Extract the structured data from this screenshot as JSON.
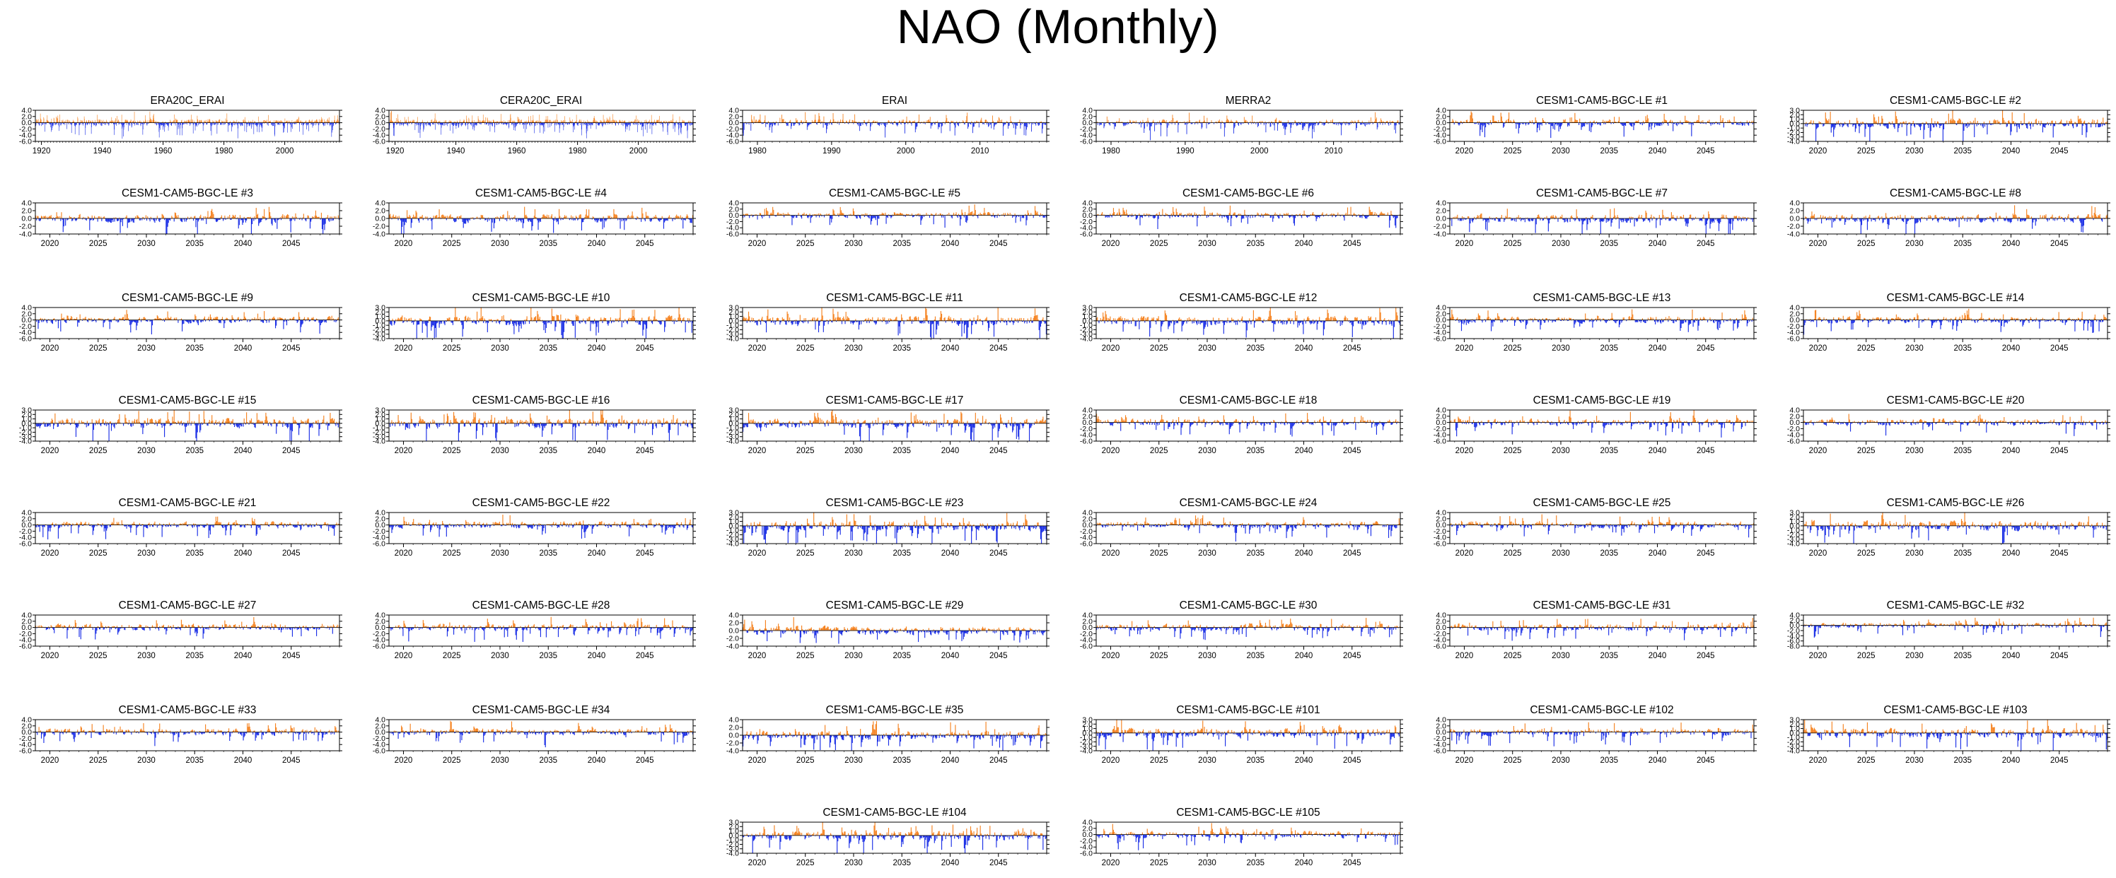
{
  "page_title": "NAO (Monthly)",
  "colors": {
    "positive": "#f5821f",
    "negative": "#1a2ee6",
    "axis": "#000000",
    "background": "#ffffff"
  },
  "chart_data": [
    {
      "type": "bar",
      "title": "ERA20C_ERAI",
      "x_ticks": [
        "1920",
        "1940",
        "1960",
        "1980",
        "2000"
      ],
      "y_ticks": [
        "4.0",
        "2.0",
        "0.0",
        "-2.0",
        "-4.0",
        "-6.0"
      ],
      "ylim": [
        -6.0,
        4.0
      ],
      "xlim": [
        1918,
        2018
      ],
      "seed": 11
    },
    {
      "type": "bar",
      "title": "CERA20C_ERAI",
      "x_ticks": [
        "1920",
        "1940",
        "1960",
        "1980",
        "2000"
      ],
      "y_ticks": [
        "4.0",
        "2.0",
        "0.0",
        "-2.0",
        "-4.0",
        "-6.0"
      ],
      "ylim": [
        -6.0,
        4.0
      ],
      "xlim": [
        1918,
        2018
      ],
      "seed": 12
    },
    {
      "type": "bar",
      "title": "ERAI",
      "x_ticks": [
        "1980",
        "1990",
        "2000",
        "2010"
      ],
      "y_ticks": [
        "4.0",
        "2.0",
        "0.0",
        "-2.0",
        "-4.0",
        "-6.0"
      ],
      "ylim": [
        -6.0,
        4.0
      ],
      "xlim": [
        1978,
        2019
      ],
      "seed": 13
    },
    {
      "type": "bar",
      "title": "MERRA2",
      "x_ticks": [
        "1980",
        "1990",
        "2000",
        "2010"
      ],
      "y_ticks": [
        "4.0",
        "2.0",
        "0.0",
        "-2.0",
        "-4.0",
        "-6.0"
      ],
      "ylim": [
        -6.0,
        4.0
      ],
      "xlim": [
        1978,
        2019
      ],
      "seed": 14
    },
    {
      "type": "bar",
      "title": "CESM1-CAM5-BGC-LE #1",
      "x_ticks": [
        "2020",
        "2025",
        "2030",
        "2035",
        "2040",
        "2045"
      ],
      "y_ticks": [
        "4.0",
        "2.0",
        "0.0",
        "-2.0",
        "-4.0",
        "-6.0"
      ],
      "ylim": [
        -6.0,
        4.0
      ],
      "xlim": [
        2018.5,
        2050
      ],
      "seed": 15
    },
    {
      "type": "bar",
      "title": "CESM1-CAM5-BGC-LE #2",
      "x_ticks": [
        "2020",
        "2025",
        "2030",
        "2035",
        "2040",
        "2045"
      ],
      "y_ticks": [
        "3.0",
        "2.0",
        "1.0",
        "0.0",
        "-1.0",
        "-2.0",
        "-3.0",
        "-4.0"
      ],
      "ylim": [
        -4.0,
        3.0
      ],
      "xlim": [
        2018.5,
        2050
      ],
      "seed": 16
    },
    {
      "type": "bar",
      "title": "CESM1-CAM5-BGC-LE #3",
      "x_ticks": [
        "2020",
        "2025",
        "2030",
        "2035",
        "2040",
        "2045"
      ],
      "y_ticks": [
        "4.0",
        "2.0",
        "0.0",
        "-2.0",
        "-4.0"
      ],
      "ylim": [
        -4.0,
        4.0
      ],
      "xlim": [
        2018.5,
        2050
      ],
      "seed": 21
    },
    {
      "type": "bar",
      "title": "CESM1-CAM5-BGC-LE #4",
      "x_ticks": [
        "2020",
        "2025",
        "2030",
        "2035",
        "2040",
        "2045"
      ],
      "y_ticks": [
        "4.0",
        "2.0",
        "0.0",
        "-2.0",
        "-4.0"
      ],
      "ylim": [
        -4.0,
        4.0
      ],
      "xlim": [
        2018.5,
        2050
      ],
      "seed": 22
    },
    {
      "type": "bar",
      "title": "CESM1-CAM5-BGC-LE #5",
      "x_ticks": [
        "2020",
        "2025",
        "2030",
        "2035",
        "2040",
        "2045"
      ],
      "y_ticks": [
        "4.0",
        "2.0",
        "0.0",
        "-2.0",
        "-4.0",
        "-6.0"
      ],
      "ylim": [
        -6.0,
        4.0
      ],
      "xlim": [
        2018.5,
        2050
      ],
      "seed": 23
    },
    {
      "type": "bar",
      "title": "CESM1-CAM5-BGC-LE #6",
      "x_ticks": [
        "2020",
        "2025",
        "2030",
        "2035",
        "2040",
        "2045"
      ],
      "y_ticks": [
        "4.0",
        "2.0",
        "0.0",
        "-2.0",
        "-4.0",
        "-6.0"
      ],
      "ylim": [
        -6.0,
        4.0
      ],
      "xlim": [
        2018.5,
        2050
      ],
      "seed": 24
    },
    {
      "type": "bar",
      "title": "CESM1-CAM5-BGC-LE #7",
      "x_ticks": [
        "2020",
        "2025",
        "2030",
        "2035",
        "2040",
        "2045"
      ],
      "y_ticks": [
        "4.0",
        "2.0",
        "0.0",
        "-2.0",
        "-4.0"
      ],
      "ylim": [
        -4.0,
        4.0
      ],
      "xlim": [
        2018.5,
        2050
      ],
      "seed": 25
    },
    {
      "type": "bar",
      "title": "CESM1-CAM5-BGC-LE #8",
      "x_ticks": [
        "2020",
        "2025",
        "2030",
        "2035",
        "2040",
        "2045"
      ],
      "y_ticks": [
        "4.0",
        "2.0",
        "0.0",
        "-2.0",
        "-4.0"
      ],
      "ylim": [
        -4.0,
        4.0
      ],
      "xlim": [
        2018.5,
        2050
      ],
      "seed": 26
    },
    {
      "type": "bar",
      "title": "CESM1-CAM5-BGC-LE #9",
      "x_ticks": [
        "2020",
        "2025",
        "2030",
        "2035",
        "2040",
        "2045"
      ],
      "y_ticks": [
        "4.0",
        "2.0",
        "0.0",
        "-2.0",
        "-4.0",
        "-6.0"
      ],
      "ylim": [
        -6.0,
        4.0
      ],
      "xlim": [
        2018.5,
        2050
      ],
      "seed": 31
    },
    {
      "type": "bar",
      "title": "CESM1-CAM5-BGC-LE #10",
      "x_ticks": [
        "2020",
        "2025",
        "2030",
        "2035",
        "2040",
        "2045"
      ],
      "y_ticks": [
        "3.0",
        "2.0",
        "1.0",
        "0.0",
        "-1.0",
        "-2.0",
        "-3.0",
        "-4.0"
      ],
      "ylim": [
        -4.0,
        3.0
      ],
      "xlim": [
        2018.5,
        2050
      ],
      "seed": 32
    },
    {
      "type": "bar",
      "title": "CESM1-CAM5-BGC-LE #11",
      "x_ticks": [
        "2020",
        "2025",
        "2030",
        "2035",
        "2040",
        "2045"
      ],
      "y_ticks": [
        "3.0",
        "2.0",
        "1.0",
        "0.0",
        "-1.0",
        "-2.0",
        "-3.0",
        "-4.0"
      ],
      "ylim": [
        -4.0,
        3.0
      ],
      "xlim": [
        2018.5,
        2050
      ],
      "seed": 33
    },
    {
      "type": "bar",
      "title": "CESM1-CAM5-BGC-LE #12",
      "x_ticks": [
        "2020",
        "2025",
        "2030",
        "2035",
        "2040",
        "2045"
      ],
      "y_ticks": [
        "3.0",
        "2.0",
        "1.0",
        "0.0",
        "-1.0",
        "-2.0",
        "-3.0",
        "-4.0"
      ],
      "ylim": [
        -4.0,
        3.0
      ],
      "xlim": [
        2018.5,
        2050
      ],
      "seed": 34
    },
    {
      "type": "bar",
      "title": "CESM1-CAM5-BGC-LE #13",
      "x_ticks": [
        "2020",
        "2025",
        "2030",
        "2035",
        "2040",
        "2045"
      ],
      "y_ticks": [
        "4.0",
        "2.0",
        "0.0",
        "-2.0",
        "-4.0",
        "-6.0"
      ],
      "ylim": [
        -6.0,
        4.0
      ],
      "xlim": [
        2018.5,
        2050
      ],
      "seed": 35
    },
    {
      "type": "bar",
      "title": "CESM1-CAM5-BGC-LE #14",
      "x_ticks": [
        "2020",
        "2025",
        "2030",
        "2035",
        "2040",
        "2045"
      ],
      "y_ticks": [
        "4.0",
        "2.0",
        "0.0",
        "-2.0",
        "-4.0",
        "-6.0"
      ],
      "ylim": [
        -6.0,
        4.0
      ],
      "xlim": [
        2018.5,
        2050
      ],
      "seed": 36
    },
    {
      "type": "bar",
      "title": "CESM1-CAM5-BGC-LE #15",
      "x_ticks": [
        "2020",
        "2025",
        "2030",
        "2035",
        "2040",
        "2045"
      ],
      "y_ticks": [
        "3.0",
        "2.0",
        "1.0",
        "0.0",
        "-1.0",
        "-2.0",
        "-3.0",
        "-4.0"
      ],
      "ylim": [
        -4.0,
        3.0
      ],
      "xlim": [
        2018.5,
        2050
      ],
      "seed": 41
    },
    {
      "type": "bar",
      "title": "CESM1-CAM5-BGC-LE #16",
      "x_ticks": [
        "2020",
        "2025",
        "2030",
        "2035",
        "2040",
        "2045"
      ],
      "y_ticks": [
        "3.0",
        "2.0",
        "1.0",
        "0.0",
        "-1.0",
        "-2.0",
        "-3.0",
        "-4.0"
      ],
      "ylim": [
        -4.0,
        3.0
      ],
      "xlim": [
        2018.5,
        2050
      ],
      "seed": 42
    },
    {
      "type": "bar",
      "title": "CESM1-CAM5-BGC-LE #17",
      "x_ticks": [
        "2020",
        "2025",
        "2030",
        "2035",
        "2040",
        "2045"
      ],
      "y_ticks": [
        "3.0",
        "2.0",
        "1.0",
        "0.0",
        "-1.0",
        "-2.0",
        "-3.0",
        "-4.0"
      ],
      "ylim": [
        -4.0,
        3.0
      ],
      "xlim": [
        2018.5,
        2050
      ],
      "seed": 43
    },
    {
      "type": "bar",
      "title": "CESM1-CAM5-BGC-LE #18",
      "x_ticks": [
        "2020",
        "2025",
        "2030",
        "2035",
        "2040",
        "2045"
      ],
      "y_ticks": [
        "4.0",
        "2.0",
        "0.0",
        "-2.0",
        "-4.0",
        "-6.0"
      ],
      "ylim": [
        -6.0,
        4.0
      ],
      "xlim": [
        2018.5,
        2050
      ],
      "seed": 44
    },
    {
      "type": "bar",
      "title": "CESM1-CAM5-BGC-LE #19",
      "x_ticks": [
        "2020",
        "2025",
        "2030",
        "2035",
        "2040",
        "2045"
      ],
      "y_ticks": [
        "4.0",
        "2.0",
        "0.0",
        "-2.0",
        "-4.0",
        "-6.0"
      ],
      "ylim": [
        -6.0,
        4.0
      ],
      "xlim": [
        2018.5,
        2050
      ],
      "seed": 45
    },
    {
      "type": "bar",
      "title": "CESM1-CAM5-BGC-LE #20",
      "x_ticks": [
        "2020",
        "2025",
        "2030",
        "2035",
        "2040",
        "2045"
      ],
      "y_ticks": [
        "4.0",
        "2.0",
        "0.0",
        "-2.0",
        "-4.0",
        "-6.0"
      ],
      "ylim": [
        -6.0,
        4.0
      ],
      "xlim": [
        2018.5,
        2050
      ],
      "seed": 46
    },
    {
      "type": "bar",
      "title": "CESM1-CAM5-BGC-LE #21",
      "x_ticks": [
        "2020",
        "2025",
        "2030",
        "2035",
        "2040",
        "2045"
      ],
      "y_ticks": [
        "4.0",
        "2.0",
        "0.0",
        "-2.0",
        "-4.0",
        "-6.0"
      ],
      "ylim": [
        -6.0,
        4.0
      ],
      "xlim": [
        2018.5,
        2050
      ],
      "seed": 51
    },
    {
      "type": "bar",
      "title": "CESM1-CAM5-BGC-LE #22",
      "x_ticks": [
        "2020",
        "2025",
        "2030",
        "2035",
        "2040",
        "2045"
      ],
      "y_ticks": [
        "4.0",
        "2.0",
        "0.0",
        "-2.0",
        "-4.0",
        "-6.0"
      ],
      "ylim": [
        -6.0,
        4.0
      ],
      "xlim": [
        2018.5,
        2050
      ],
      "seed": 52
    },
    {
      "type": "bar",
      "title": "CESM1-CAM5-BGC-LE #23",
      "x_ticks": [
        "2020",
        "2025",
        "2030",
        "2035",
        "2040",
        "2045"
      ],
      "y_ticks": [
        "3.0",
        "2.0",
        "1.0",
        "0.0",
        "-1.0",
        "-2.0",
        "-3.0",
        "-4.0"
      ],
      "ylim": [
        -4.0,
        3.0
      ],
      "xlim": [
        2018.5,
        2050
      ],
      "seed": 53
    },
    {
      "type": "bar",
      "title": "CESM1-CAM5-BGC-LE #24",
      "x_ticks": [
        "2020",
        "2025",
        "2030",
        "2035",
        "2040",
        "2045"
      ],
      "y_ticks": [
        "4.0",
        "2.0",
        "0.0",
        "-2.0",
        "-4.0",
        "-6.0"
      ],
      "ylim": [
        -6.0,
        4.0
      ],
      "xlim": [
        2018.5,
        2050
      ],
      "seed": 54
    },
    {
      "type": "bar",
      "title": "CESM1-CAM5-BGC-LE #25",
      "x_ticks": [
        "2020",
        "2025",
        "2030",
        "2035",
        "2040",
        "2045"
      ],
      "y_ticks": [
        "4.0",
        "2.0",
        "0.0",
        "-2.0",
        "-4.0",
        "-6.0"
      ],
      "ylim": [
        -6.0,
        4.0
      ],
      "xlim": [
        2018.5,
        2050
      ],
      "seed": 55
    },
    {
      "type": "bar",
      "title": "CESM1-CAM5-BGC-LE #26",
      "x_ticks": [
        "2020",
        "2025",
        "2030",
        "2035",
        "2040",
        "2045"
      ],
      "y_ticks": [
        "3.0",
        "2.0",
        "1.0",
        "0.0",
        "-1.0",
        "-2.0",
        "-3.0",
        "-4.0"
      ],
      "ylim": [
        -4.0,
        3.0
      ],
      "xlim": [
        2018.5,
        2050
      ],
      "seed": 56
    },
    {
      "type": "bar",
      "title": "CESM1-CAM5-BGC-LE #27",
      "x_ticks": [
        "2020",
        "2025",
        "2030",
        "2035",
        "2040",
        "2045"
      ],
      "y_ticks": [
        "4.0",
        "2.0",
        "0.0",
        "-2.0",
        "-4.0",
        "-6.0"
      ],
      "ylim": [
        -6.0,
        4.0
      ],
      "xlim": [
        2018.5,
        2050
      ],
      "seed": 61
    },
    {
      "type": "bar",
      "title": "CESM1-CAM5-BGC-LE #28",
      "x_ticks": [
        "2020",
        "2025",
        "2030",
        "2035",
        "2040",
        "2045"
      ],
      "y_ticks": [
        "4.0",
        "2.0",
        "0.0",
        "-2.0",
        "-4.0",
        "-6.0"
      ],
      "ylim": [
        -6.0,
        4.0
      ],
      "xlim": [
        2018.5,
        2050
      ],
      "seed": 62
    },
    {
      "type": "bar",
      "title": "CESM1-CAM5-BGC-LE #29",
      "x_ticks": [
        "2020",
        "2025",
        "2030",
        "2035",
        "2040",
        "2045"
      ],
      "y_ticks": [
        "4.0",
        "2.0",
        "0.0",
        "-2.0",
        "-4.0"
      ],
      "ylim": [
        -4.0,
        4.0
      ],
      "xlim": [
        2018.5,
        2050
      ],
      "seed": 63
    },
    {
      "type": "bar",
      "title": "CESM1-CAM5-BGC-LE #30",
      "x_ticks": [
        "2020",
        "2025",
        "2030",
        "2035",
        "2040",
        "2045"
      ],
      "y_ticks": [
        "4.0",
        "2.0",
        "0.0",
        "-2.0",
        "-4.0",
        "-6.0"
      ],
      "ylim": [
        -6.0,
        4.0
      ],
      "xlim": [
        2018.5,
        2050
      ],
      "seed": 64
    },
    {
      "type": "bar",
      "title": "CESM1-CAM5-BGC-LE #31",
      "x_ticks": [
        "2020",
        "2025",
        "2030",
        "2035",
        "2040",
        "2045"
      ],
      "y_ticks": [
        "4.0",
        "2.0",
        "0.0",
        "-2.0",
        "-4.0",
        "-6.0"
      ],
      "ylim": [
        -6.0,
        4.0
      ],
      "xlim": [
        2018.5,
        2050
      ],
      "seed": 65
    },
    {
      "type": "bar",
      "title": "CESM1-CAM5-BGC-LE #32",
      "x_ticks": [
        "2020",
        "2025",
        "2030",
        "2035",
        "2040",
        "2045"
      ],
      "y_ticks": [
        "4.0",
        "2.0",
        "0.0",
        "-2.0",
        "-4.0",
        "-6.0",
        "-8.0"
      ],
      "ylim": [
        -8.0,
        4.0
      ],
      "xlim": [
        2018.5,
        2050
      ],
      "seed": 66
    },
    {
      "type": "bar",
      "title": "CESM1-CAM5-BGC-LE #33",
      "x_ticks": [
        "2020",
        "2025",
        "2030",
        "2035",
        "2040",
        "2045"
      ],
      "y_ticks": [
        "4.0",
        "2.0",
        "0.0",
        "-2.0",
        "-4.0",
        "-6.0"
      ],
      "ylim": [
        -6.0,
        4.0
      ],
      "xlim": [
        2018.5,
        2050
      ],
      "seed": 71
    },
    {
      "type": "bar",
      "title": "CESM1-CAM5-BGC-LE #34",
      "x_ticks": [
        "2020",
        "2025",
        "2030",
        "2035",
        "2040",
        "2045"
      ],
      "y_ticks": [
        "4.0",
        "2.0",
        "0.0",
        "-2.0",
        "-4.0",
        "-6.0"
      ],
      "ylim": [
        -6.0,
        4.0
      ],
      "xlim": [
        2018.5,
        2050
      ],
      "seed": 72
    },
    {
      "type": "bar",
      "title": "CESM1-CAM5-BGC-LE #35",
      "x_ticks": [
        "2020",
        "2025",
        "2030",
        "2035",
        "2040",
        "2045"
      ],
      "y_ticks": [
        "4.0",
        "2.0",
        "0.0",
        "-2.0",
        "-4.0"
      ],
      "ylim": [
        -4.0,
        4.0
      ],
      "xlim": [
        2018.5,
        2050
      ],
      "seed": 73
    },
    {
      "type": "bar",
      "title": "CESM1-CAM5-BGC-LE #101",
      "x_ticks": [
        "2020",
        "2025",
        "2030",
        "2035",
        "2040",
        "2045"
      ],
      "y_ticks": [
        "3.0",
        "2.0",
        "1.0",
        "0.0",
        "-1.0",
        "-2.0",
        "-3.0",
        "-4.0"
      ],
      "ylim": [
        -4.0,
        3.0
      ],
      "xlim": [
        2018.5,
        2050
      ],
      "seed": 74
    },
    {
      "type": "bar",
      "title": "CESM1-CAM5-BGC-LE #102",
      "x_ticks": [
        "2020",
        "2025",
        "2030",
        "2035",
        "2040",
        "2045"
      ],
      "y_ticks": [
        "4.0",
        "2.0",
        "0.0",
        "-2.0",
        "-4.0",
        "-6.0"
      ],
      "ylim": [
        -6.0,
        4.0
      ],
      "xlim": [
        2018.5,
        2050
      ],
      "seed": 75
    },
    {
      "type": "bar",
      "title": "CESM1-CAM5-BGC-LE #103",
      "x_ticks": [
        "2020",
        "2025",
        "2030",
        "2035",
        "2040",
        "2045"
      ],
      "y_ticks": [
        "3.0",
        "2.0",
        "1.0",
        "0.0",
        "-1.0",
        "-2.0",
        "-3.0",
        "-4.0"
      ],
      "ylim": [
        -4.0,
        3.0
      ],
      "xlim": [
        2018.5,
        2050
      ],
      "seed": 76
    },
    {
      "type": "bar",
      "title": "CESM1-CAM5-BGC-LE #104",
      "x_ticks": [
        "2020",
        "2025",
        "2030",
        "2035",
        "2040",
        "2045"
      ],
      "y_ticks": [
        "3.0",
        "2.0",
        "1.0",
        "0.0",
        "-1.0",
        "-2.0",
        "-3.0",
        "-4.0"
      ],
      "ylim": [
        -4.0,
        3.0
      ],
      "xlim": [
        2018.5,
        2050
      ],
      "seed": 81
    },
    {
      "type": "bar",
      "title": "CESM1-CAM5-BGC-LE #105",
      "x_ticks": [
        "2020",
        "2025",
        "2030",
        "2035",
        "2040",
        "2045"
      ],
      "y_ticks": [
        "4.0",
        "2.0",
        "0.0",
        "-2.0",
        "-4.0",
        "-6.0"
      ],
      "ylim": [
        -6.0,
        4.0
      ],
      "xlim": [
        2018.5,
        2050
      ],
      "seed": 82
    }
  ]
}
